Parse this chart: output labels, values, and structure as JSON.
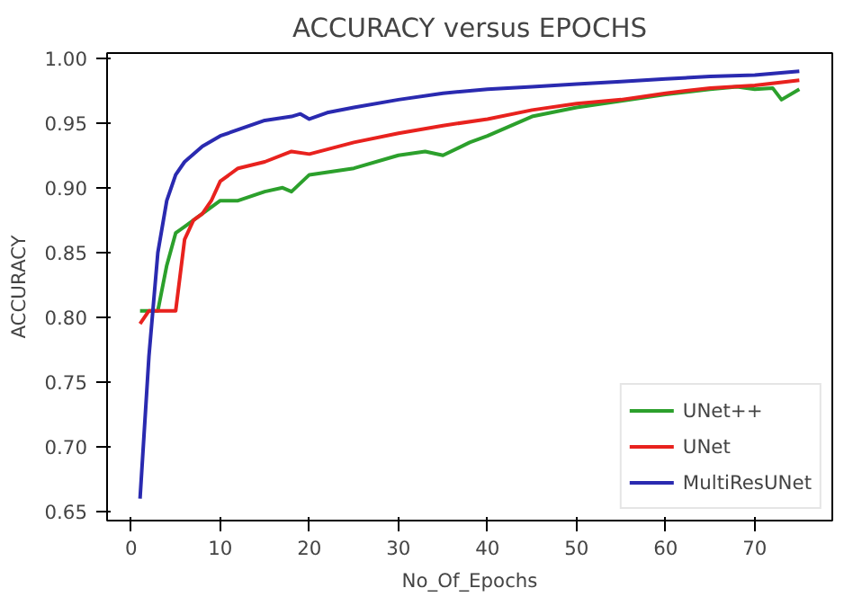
{
  "chart_data": {
    "type": "line",
    "title": "ACCURACY versus EPOCHS",
    "xlabel": "No_Of_Epochs",
    "ylabel": "ACCURACY",
    "xlim": [
      -2.7,
      78.7
    ],
    "ylim": [
      0.643,
      1.004
    ],
    "xticks": [
      0,
      10,
      20,
      30,
      40,
      50,
      60,
      70
    ],
    "yticks": [
      0.65,
      {
        "value": 0.7,
        "label": "0.70"
      },
      0.75,
      {
        "value": 0.8,
        "label": "0.80"
      },
      0.85,
      {
        "value": 0.9,
        "label": "0.90"
      },
      0.95,
      {
        "value": 1.0,
        "label": "1.00"
      }
    ],
    "legend": "bottom right",
    "grid": false,
    "series": [
      {
        "name": "UNet++",
        "color": "#2ca02c",
        "x": [
          1,
          3,
          4,
          5,
          6,
          8,
          10,
          12,
          15,
          17,
          18,
          20,
          25,
          30,
          33,
          35,
          38,
          40,
          45,
          50,
          55,
          60,
          65,
          68,
          70,
          72,
          73,
          75
        ],
        "values": [
          0.805,
          0.805,
          0.84,
          0.865,
          0.87,
          0.88,
          0.89,
          0.89,
          0.897,
          0.9,
          0.897,
          0.91,
          0.915,
          0.925,
          0.928,
          0.925,
          0.935,
          0.94,
          0.955,
          0.962,
          0.967,
          0.972,
          0.976,
          0.978,
          0.976,
          0.977,
          0.968,
          0.976
        ]
      },
      {
        "name": "UNet",
        "color": "#e8221e",
        "x": [
          1,
          2,
          3,
          4,
          5,
          6,
          7,
          8,
          9,
          10,
          12,
          15,
          18,
          20,
          25,
          30,
          35,
          40,
          45,
          50,
          55,
          60,
          65,
          70,
          75
        ],
        "values": [
          0.795,
          0.805,
          0.805,
          0.805,
          0.805,
          0.86,
          0.875,
          0.88,
          0.89,
          0.905,
          0.915,
          0.92,
          0.928,
          0.926,
          0.935,
          0.942,
          0.948,
          0.953,
          0.96,
          0.965,
          0.968,
          0.973,
          0.977,
          0.979,
          0.983
        ]
      },
      {
        "name": "MultiResUNet",
        "color": "#2a2ab0",
        "x": [
          1,
          2,
          3,
          4,
          5,
          6,
          8,
          10,
          15,
          18,
          19,
          20,
          22,
          25,
          30,
          35,
          40,
          45,
          50,
          55,
          60,
          65,
          70,
          75
        ],
        "values": [
          0.66,
          0.77,
          0.85,
          0.89,
          0.91,
          0.92,
          0.932,
          0.94,
          0.952,
          0.955,
          0.957,
          0.953,
          0.958,
          0.962,
          0.968,
          0.973,
          0.976,
          0.978,
          0.98,
          0.982,
          0.984,
          0.986,
          0.987,
          0.99
        ]
      }
    ]
  }
}
